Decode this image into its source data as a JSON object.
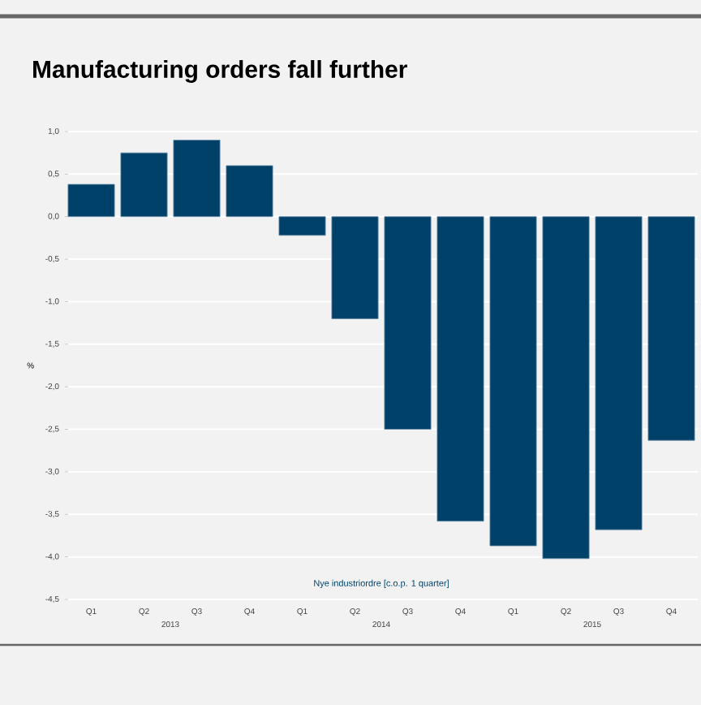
{
  "chart_data": {
    "type": "bar",
    "title": "Manufacturing orders fall further",
    "ylabel": "%",
    "categories": [
      "Q1",
      "Q2",
      "Q3",
      "Q4",
      "Q1",
      "Q2",
      "Q3",
      "Q4",
      "Q1",
      "Q2",
      "Q3",
      "Q4"
    ],
    "series": [
      {
        "name": "Nye industriordre [c.o.p. 1 quarter]",
        "color": "#00416a",
        "values": [
          0.38,
          0.75,
          0.9,
          0.6,
          -0.22,
          -1.2,
          -2.5,
          -3.58,
          -3.87,
          -4.02,
          -3.68,
          -2.63
        ]
      }
    ],
    "annotations": [
      "2013",
      "2014",
      "2015"
    ],
    "ylim": [
      -4.5,
      1.0
    ],
    "yticks": [
      {
        "value": 1.0,
        "label": "1,0"
      },
      {
        "value": 0.5,
        "label": "0,5"
      },
      {
        "value": 0.0,
        "label": "0,0"
      },
      {
        "value": -0.5,
        "label": "-0,5"
      },
      {
        "value": -1.0,
        "label": "-1,0"
      },
      {
        "value": -1.5,
        "label": "-1,5"
      },
      {
        "value": -2.0,
        "label": "-2,0"
      },
      {
        "value": -2.5,
        "label": "-2,5"
      },
      {
        "value": -3.0,
        "label": "-3,0"
      },
      {
        "value": -3.5,
        "label": "-3,5"
      },
      {
        "value": -4.0,
        "label": "-4,0"
      },
      {
        "value": -4.5,
        "label": "-4,5"
      }
    ],
    "grid": "y",
    "legend": "bottom"
  }
}
